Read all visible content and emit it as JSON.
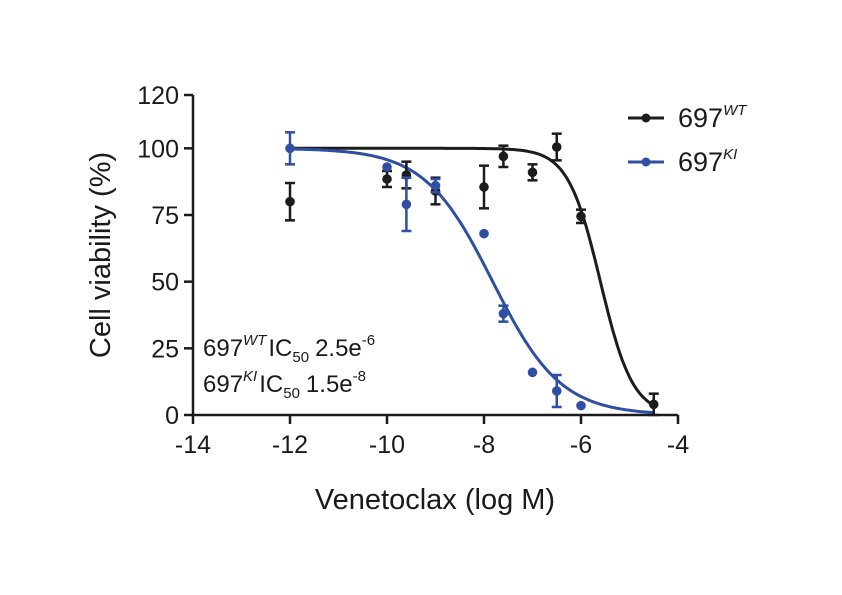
{
  "chart_data": {
    "type": "scatter",
    "xlabel": "Venetoclax (log M)",
    "ylabel": "Cell viability (%)",
    "xlim": [
      -14,
      -4
    ],
    "ylim": [
      0,
      120
    ],
    "xticks": [
      -14,
      -12,
      -10,
      -8,
      -6,
      -4
    ],
    "yticks": [
      0,
      25,
      50,
      75,
      100,
      120
    ],
    "xtick_labels": [
      "-14",
      "-12",
      "-10",
      "-8",
      "-6",
      "-4"
    ],
    "ytick_labels": [
      "0",
      "25",
      "50",
      "75",
      "100",
      "120"
    ],
    "legend_position": "top-right",
    "grid": false,
    "series": [
      {
        "name": "697",
        "name_sup": "WT",
        "color": "#1c1c1c",
        "points": [
          {
            "x": -12,
            "y": 80,
            "err": 7
          },
          {
            "x": -10,
            "y": 88.5,
            "err": 3
          },
          {
            "x": -9.6,
            "y": 90,
            "err": 5
          },
          {
            "x": -9,
            "y": 84,
            "err": 5
          },
          {
            "x": -8,
            "y": 85.5,
            "err": 8
          },
          {
            "x": -7.6,
            "y": 97,
            "err": 4
          },
          {
            "x": -7,
            "y": 91,
            "err": 3
          },
          {
            "x": -6.5,
            "y": 100.5,
            "err": 5
          },
          {
            "x": -6,
            "y": 74.5,
            "err": 2.5
          },
          {
            "x": -4.5,
            "y": 4,
            "err": 4
          }
        ],
        "fit": {
          "top": 100,
          "bottom": 0,
          "ic50_log": -5.6,
          "hill": 1.3
        }
      },
      {
        "name": "697",
        "name_sup": "KI",
        "color": "#2f4fa2",
        "points": [
          {
            "x": -12,
            "y": 100,
            "err": 6
          },
          {
            "x": -10,
            "y": 93,
            "err": 0
          },
          {
            "x": -9.6,
            "y": 79,
            "err": 10
          },
          {
            "x": -9,
            "y": 86,
            "err": 2.5
          },
          {
            "x": -8,
            "y": 68,
            "err": 0
          },
          {
            "x": -7.6,
            "y": 38,
            "err": 3
          },
          {
            "x": -7,
            "y": 16,
            "err": 0
          },
          {
            "x": -6.5,
            "y": 9,
            "err": 6
          },
          {
            "x": -6,
            "y": 3.5,
            "err": 0
          }
        ],
        "fit": {
          "top": 100,
          "bottom": 0,
          "ic50_log": -7.82,
          "hill": 0.62
        }
      }
    ],
    "annotations": [
      {
        "prefix": "697",
        "sup": "WT",
        "ic": "IC",
        "sub": "50",
        "value_base": "2.5e",
        "value_exp": "-6"
      },
      {
        "prefix": "697",
        "sup": "KI",
        "ic": "IC",
        "sub": "50",
        "value_base": "1.5e",
        "value_exp": "-8"
      }
    ]
  }
}
